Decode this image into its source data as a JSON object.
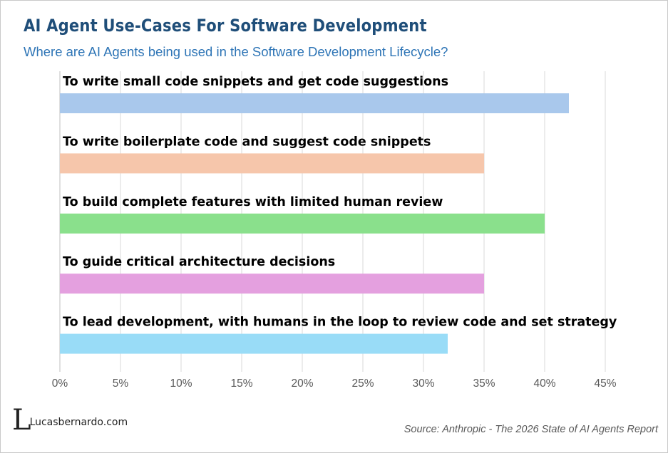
{
  "header": {
    "title": "AI Agent Use-Cases For Software Development",
    "subtitle": "Where are AI Agents being used in the Software Development Lifecycle?"
  },
  "chart_data": {
    "type": "bar",
    "orientation": "horizontal",
    "title": "AI Agent Use-Cases For Software Development",
    "subtitle": "Where are AI Agents being used in the Software Development Lifecycle?",
    "categories": [
      "To write small code snippets and get code suggestions",
      "To write boilerplate code and suggest code snippets",
      "To build complete features with limited human review",
      "To guide critical architecture decisions",
      "To lead development, with humans in the loop to review code and set strategy"
    ],
    "values": [
      42,
      35,
      40,
      35,
      32
    ],
    "colors": [
      "#a9c8ec",
      "#f6c6ab",
      "#8ae08c",
      "#e4a0df",
      "#99dcf7"
    ],
    "xlim": [
      0,
      45
    ],
    "xticks": [
      "0%",
      "5%",
      "10%",
      "15%",
      "20%",
      "25%",
      "30%",
      "35%",
      "40%",
      "45%"
    ],
    "grid": true,
    "legend": "none",
    "xlabel": "",
    "ylabel": ""
  },
  "footer": {
    "logo_mark": "L",
    "logo_text": "Lucasbernardo.com",
    "source": "Source: Anthropic - The 2026 State of AI Agents Report"
  }
}
